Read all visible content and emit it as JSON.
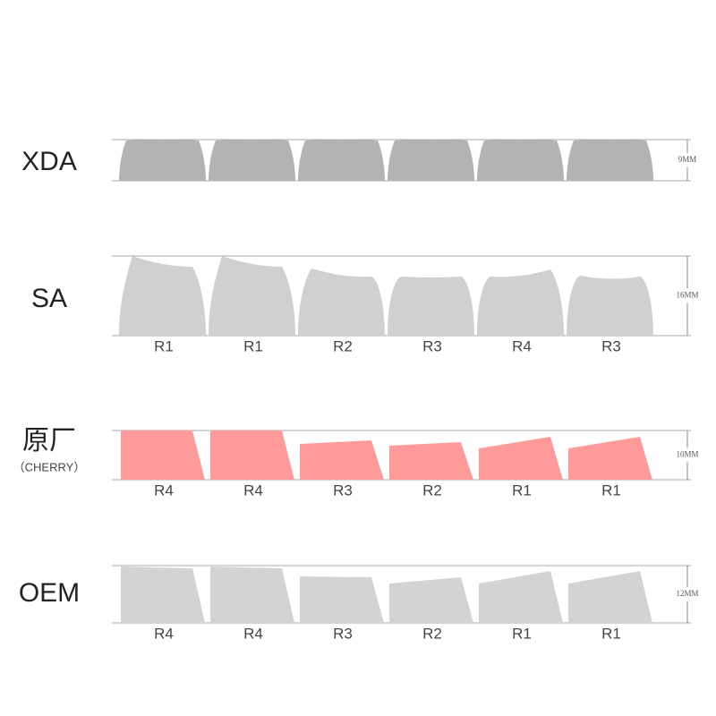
{
  "profiles": [
    {
      "name": "XDA",
      "height": "9MM"
    },
    {
      "name": "SA",
      "height": "16MM",
      "rows": [
        "R1",
        "R1",
        "R2",
        "R3",
        "R4",
        "R3"
      ]
    },
    {
      "name": "原厂",
      "subname": "（CHERRY）",
      "height": "10MM",
      "rows": [
        "R4",
        "R4",
        "R3",
        "R2",
        "R1",
        "R1"
      ]
    },
    {
      "name": "OEM",
      "height": "12MM",
      "rows": [
        "R4",
        "R4",
        "R3",
        "R2",
        "R1",
        "R1"
      ]
    }
  ]
}
